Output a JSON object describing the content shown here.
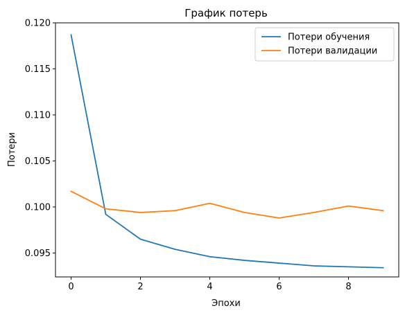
{
  "chart_data": {
    "type": "line",
    "title": "График потерь",
    "xlabel": "Эпохи",
    "ylabel": "Потери",
    "x": [
      0,
      1,
      2,
      3,
      4,
      5,
      6,
      7,
      8,
      9
    ],
    "xlim": [
      -0.45,
      9.45
    ],
    "ylim": [
      0.0924,
      0.12
    ],
    "xticks": [
      0,
      2,
      4,
      6,
      8
    ],
    "xtick_labels": [
      "0",
      "2",
      "4",
      "6",
      "8"
    ],
    "yticks": [
      0.095,
      0.1,
      0.105,
      0.11,
      0.115,
      0.12
    ],
    "ytick_labels": [
      "0.095",
      "0.100",
      "0.105",
      "0.110",
      "0.115",
      "0.120"
    ],
    "grid": false,
    "legend_position": "top-right",
    "series": [
      {
        "name": "Потери обучения",
        "color": "#1f77b4",
        "values": [
          0.1187,
          0.0992,
          0.0965,
          0.0954,
          0.0946,
          0.0942,
          0.0939,
          0.0936,
          0.0935,
          0.0934
        ]
      },
      {
        "name": "Потери валидации",
        "color": "#ff7f0e",
        "values": [
          0.1017,
          0.0998,
          0.0994,
          0.0996,
          0.1004,
          0.0994,
          0.0988,
          0.0994,
          0.1001,
          0.0996
        ]
      }
    ]
  }
}
